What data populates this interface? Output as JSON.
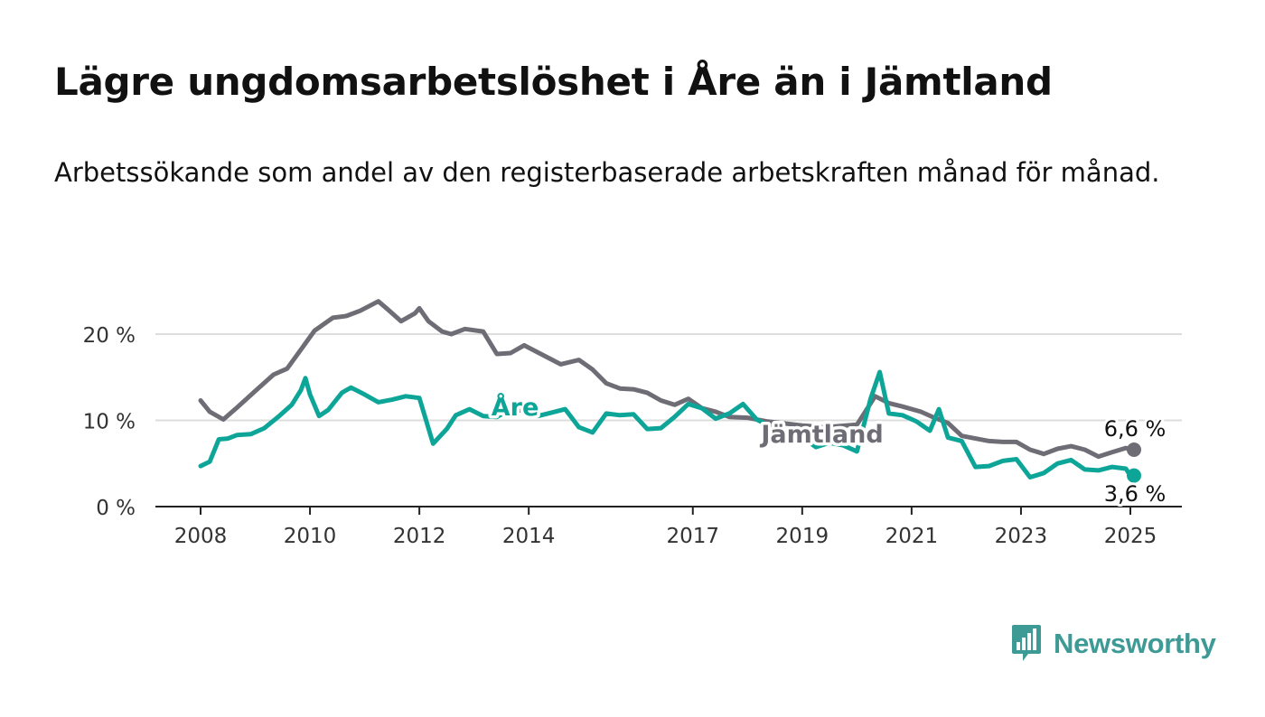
{
  "header": {
    "title": "Lägre ungdomsarbetslöshet i Åre än i Jämtland",
    "subtitle": "Arbetssökande som andel av den registerbaserade arbetskraften månad för månad."
  },
  "logo": {
    "text": "Newsworthy",
    "icon": "bar-chart-speech-bubble-icon"
  },
  "chart_data": {
    "type": "line",
    "title": "Lägre ungdomsarbetslöshet i Åre än i Jämtland",
    "subtitle": "Arbetssökande som andel av den registerbaserade arbetskraften månad för månad.",
    "xlabel": "",
    "ylabel": "",
    "x_ticks": [
      "2008",
      "2010",
      "2012",
      "2014",
      "2017",
      "2019",
      "2021",
      "2023",
      "2025"
    ],
    "y_ticks": [
      {
        "value": 0,
        "label": "0 %"
      },
      {
        "value": 10,
        "label": "10 %"
      },
      {
        "value": 20,
        "label": "20 %"
      }
    ],
    "xlim": [
      "2008-01",
      "2025-01"
    ],
    "ylim": [
      0,
      25
    ],
    "grid": "horizontal",
    "legend": "inline labels",
    "colors": {
      "jamtland": "#6e6d75",
      "are": "#0ea599",
      "grid": "#dddddd",
      "axis": "#222222"
    },
    "series": [
      {
        "name": "Jämtland",
        "color": "#6e6d75",
        "end_label": "6,6 %",
        "points": [
          [
            "2008-01",
            12.3
          ],
          [
            "2008-03",
            11.0
          ],
          [
            "2008-06",
            10.1
          ],
          [
            "2008-09",
            11.5
          ],
          [
            "2009-01",
            13.4
          ],
          [
            "2009-05",
            15.3
          ],
          [
            "2009-08",
            16.0
          ],
          [
            "2009-11",
            18.2
          ],
          [
            "2010-02",
            20.4
          ],
          [
            "2010-06",
            21.9
          ],
          [
            "2010-09",
            22.1
          ],
          [
            "2010-12",
            22.7
          ],
          [
            "2011-04",
            23.8
          ],
          [
            "2011-06",
            22.9
          ],
          [
            "2011-09",
            21.5
          ],
          [
            "2011-12",
            22.4
          ],
          [
            "2012-01",
            23.0
          ],
          [
            "2012-03",
            21.5
          ],
          [
            "2012-06",
            20.3
          ],
          [
            "2012-08",
            20.0
          ],
          [
            "2012-11",
            20.6
          ],
          [
            "2013-03",
            20.3
          ],
          [
            "2013-06",
            17.7
          ],
          [
            "2013-09",
            17.8
          ],
          [
            "2013-12",
            18.7
          ],
          [
            "2014-04",
            17.6
          ],
          [
            "2014-08",
            16.5
          ],
          [
            "2014-12",
            17.0
          ],
          [
            "2015-03",
            15.9
          ],
          [
            "2015-06",
            14.3
          ],
          [
            "2015-09",
            13.7
          ],
          [
            "2015-12",
            13.6
          ],
          [
            "2016-03",
            13.2
          ],
          [
            "2016-06",
            12.3
          ],
          [
            "2016-09",
            11.8
          ],
          [
            "2016-12",
            12.5
          ],
          [
            "2017-03",
            11.4
          ],
          [
            "2017-06",
            11.0
          ],
          [
            "2017-09",
            10.4
          ],
          [
            "2018-01",
            10.3
          ],
          [
            "2018-05",
            9.9
          ],
          [
            "2019-01",
            9.4
          ],
          [
            "2019-06",
            9.2
          ],
          [
            "2020-01",
            9.5
          ],
          [
            "2020-05",
            12.8
          ],
          [
            "2020-08",
            12.0
          ],
          [
            "2020-11",
            11.6
          ],
          [
            "2021-03",
            11.0
          ],
          [
            "2021-06",
            10.3
          ],
          [
            "2021-09",
            9.7
          ],
          [
            "2021-12",
            8.2
          ],
          [
            "2022-03",
            7.9
          ],
          [
            "2022-06",
            7.6
          ],
          [
            "2022-09",
            7.5
          ],
          [
            "2022-12",
            7.5
          ],
          [
            "2023-03",
            6.6
          ],
          [
            "2023-06",
            6.1
          ],
          [
            "2023-09",
            6.7
          ],
          [
            "2023-12",
            7.0
          ],
          [
            "2024-03",
            6.6
          ],
          [
            "2024-06",
            5.8
          ],
          [
            "2024-09",
            6.3
          ],
          [
            "2024-12",
            6.8
          ],
          [
            "2025-01",
            6.6
          ]
        ]
      },
      {
        "name": "Åre",
        "color": "#0ea599",
        "end_label": "3,6 %",
        "points": [
          [
            "2008-01",
            4.7
          ],
          [
            "2008-03",
            5.2
          ],
          [
            "2008-05",
            7.8
          ],
          [
            "2008-07",
            7.9
          ],
          [
            "2008-09",
            8.3
          ],
          [
            "2008-12",
            8.4
          ],
          [
            "2009-03",
            9.1
          ],
          [
            "2009-06",
            10.4
          ],
          [
            "2009-09",
            11.8
          ],
          [
            "2009-11",
            13.5
          ],
          [
            "2009-12",
            14.9
          ],
          [
            "2010-01",
            13.0
          ],
          [
            "2010-03",
            10.5
          ],
          [
            "2010-05",
            11.2
          ],
          [
            "2010-08",
            13.2
          ],
          [
            "2010-10",
            13.8
          ],
          [
            "2011-01",
            13.0
          ],
          [
            "2011-04",
            12.1
          ],
          [
            "2011-07",
            12.4
          ],
          [
            "2011-10",
            12.8
          ],
          [
            "2012-01",
            12.6
          ],
          [
            "2012-04",
            7.3
          ],
          [
            "2012-07",
            9.0
          ],
          [
            "2012-09",
            10.6
          ],
          [
            "2012-12",
            11.3
          ],
          [
            "2013-03",
            10.5
          ],
          [
            "2013-06",
            10.4
          ],
          [
            "2013-09",
            11.3
          ],
          [
            "2013-12",
            11.1
          ],
          [
            "2014-03",
            10.5
          ],
          [
            "2014-06",
            10.9
          ],
          [
            "2014-09",
            11.3
          ],
          [
            "2014-12",
            9.2
          ],
          [
            "2015-03",
            8.6
          ],
          [
            "2015-06",
            10.8
          ],
          [
            "2015-09",
            10.6
          ],
          [
            "2015-12",
            10.7
          ],
          [
            "2016-03",
            9.0
          ],
          [
            "2016-06",
            9.1
          ],
          [
            "2016-09",
            10.4
          ],
          [
            "2016-12",
            11.9
          ],
          [
            "2017-03",
            11.4
          ],
          [
            "2017-06",
            10.2
          ],
          [
            "2017-09",
            10.8
          ],
          [
            "2017-12",
            11.9
          ],
          [
            "2018-03",
            10.1
          ],
          [
            "2018-06",
            9.3
          ],
          [
            "2018-09",
            8.8
          ],
          [
            "2019-01",
            8.0
          ],
          [
            "2019-04",
            6.9
          ],
          [
            "2019-07",
            7.4
          ],
          [
            "2019-10",
            7.1
          ],
          [
            "2020-01",
            6.4
          ],
          [
            "2020-04",
            12.5
          ],
          [
            "2020-06",
            15.6
          ],
          [
            "2020-08",
            10.8
          ],
          [
            "2020-11",
            10.6
          ],
          [
            "2021-02",
            9.9
          ],
          [
            "2021-05",
            8.8
          ],
          [
            "2021-07",
            11.3
          ],
          [
            "2021-09",
            8.0
          ],
          [
            "2021-12",
            7.6
          ],
          [
            "2022-03",
            4.6
          ],
          [
            "2022-06",
            4.7
          ],
          [
            "2022-09",
            5.3
          ],
          [
            "2022-12",
            5.5
          ],
          [
            "2023-03",
            3.4
          ],
          [
            "2023-06",
            3.9
          ],
          [
            "2023-09",
            5.0
          ],
          [
            "2023-12",
            5.4
          ],
          [
            "2024-03",
            4.3
          ],
          [
            "2024-06",
            4.2
          ],
          [
            "2024-09",
            4.6
          ],
          [
            "2024-12",
            4.4
          ],
          [
            "2025-01",
            3.6
          ]
        ]
      }
    ]
  }
}
